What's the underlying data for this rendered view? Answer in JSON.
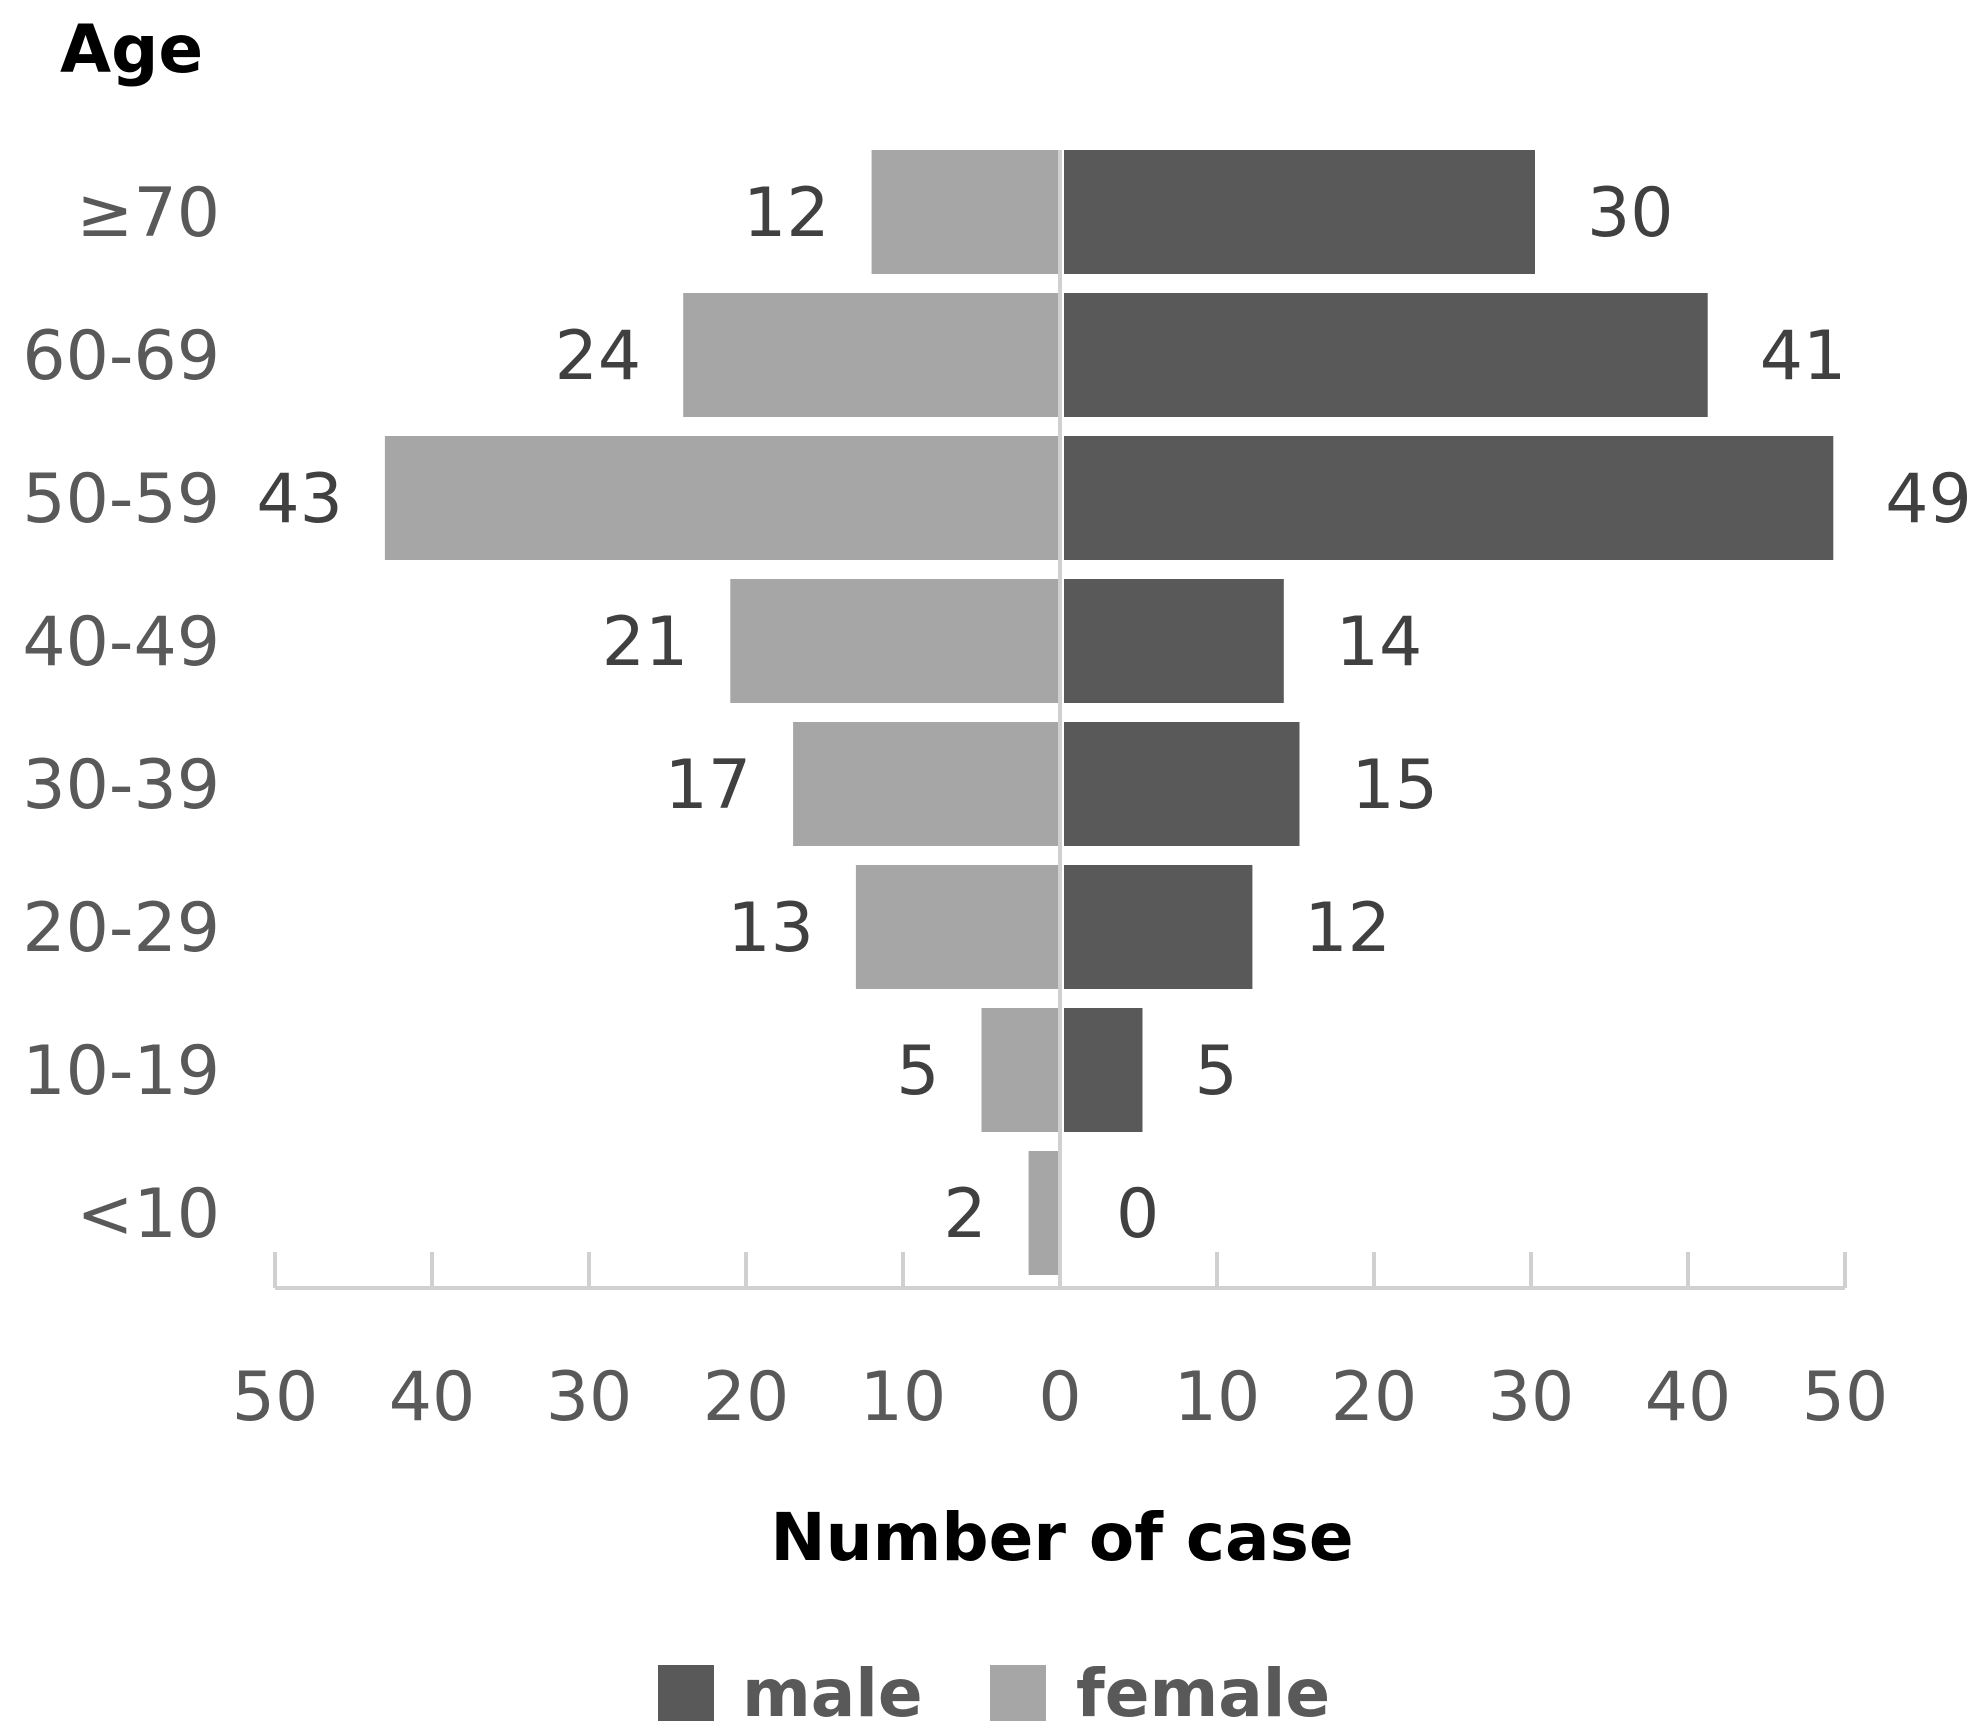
{
  "chart_data": {
    "type": "bar",
    "orientation": "horizontal-butterfly",
    "categories": [
      ">=70",
      "60-69",
      "50-59",
      "40-49",
      "30-39",
      "20-29",
      "10-19",
      "<10"
    ],
    "category_labels": [
      "≥70",
      "60-69",
      "50-59",
      "40-49",
      "30-39",
      "20-29",
      "10-19",
      "<10"
    ],
    "series": [
      {
        "name": "male",
        "side": "right",
        "values": [
          30,
          41,
          49,
          14,
          15,
          12,
          5,
          0
        ]
      },
      {
        "name": "female",
        "side": "left",
        "values": [
          12,
          24,
          43,
          21,
          17,
          13,
          5,
          2
        ]
      }
    ],
    "xlim": [
      -50,
      50
    ],
    "x_ticks": [
      -50,
      -40,
      -30,
      -20,
      -10,
      0,
      10,
      20,
      30,
      40,
      50
    ],
    "x_tick_labels": [
      "50",
      "40",
      "30",
      "20",
      "10",
      "0",
      "10",
      "20",
      "30",
      "40",
      "50"
    ],
    "ylabel": "Age",
    "xlabel": "Number of case",
    "legend_position": "bottom",
    "grid": false,
    "colors": {
      "male": "#595959",
      "female": "#a6a6a6",
      "axis": "#d0d0d0"
    }
  }
}
